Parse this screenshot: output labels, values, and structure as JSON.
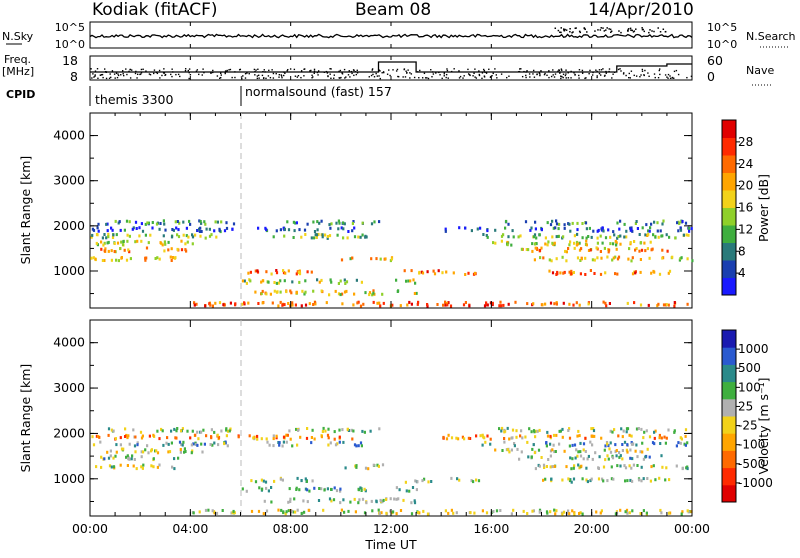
{
  "header": {
    "station": "Kodiak (fitACF)",
    "beam": "Beam 08",
    "date": "14/Apr/2010"
  },
  "strip_labels": {
    "nsky": "N.Sky",
    "nsky_ticks": [
      "10^5",
      "10^0"
    ],
    "nsearch": "N.Search",
    "nsearch_ticks": [
      "10^5",
      "10^0"
    ],
    "freq_line1": "Freq.",
    "freq_line2": "[MHz]",
    "freq_ticks": [
      "18",
      "8"
    ],
    "nave": "Nave",
    "nave_ticks": [
      "60",
      "0"
    ],
    "cpid": "CPID",
    "cpid_segments": [
      "themis 3300",
      "normalsound (fast) 157"
    ]
  },
  "chart_data": [
    {
      "type": "heatmap",
      "name": "power-panel",
      "ylabel": "Slant Range [km]",
      "xlabel": "",
      "yticks": [
        "1000",
        "2000",
        "3000",
        "4000"
      ],
      "ylim": [
        180,
        4500
      ],
      "xlim": [
        0,
        24
      ],
      "colorbar_label": "Power [dB]",
      "colorbar_ticks": [
        "4",
        "8",
        "12",
        "16",
        "20",
        "24",
        "28"
      ],
      "colorbar_colors": [
        "#1a1aff",
        "#1a3fb0",
        "#2a7a7a",
        "#3fae3f",
        "#8fd02a",
        "#f2d21a",
        "#ffa500",
        "#ff6a00",
        "#ff2a00",
        "#e00000"
      ],
      "bands": [
        {
          "range_km": 2100,
          "hours": [
            [
              0.2,
              5.8
            ],
            [
              7.8,
              11.5
            ],
            [
              16.2,
              23.8
            ]
          ],
          "level": 0.75
        },
        {
          "range_km": 1950,
          "hours": [
            [
              0.0,
              6.0
            ],
            [
              6.3,
              10.5
            ],
            [
              14.0,
              24.0
            ]
          ],
          "level": 0.9
        },
        {
          "range_km": 1800,
          "hours": [
            [
              0.0,
              5.5
            ],
            [
              7.0,
              11.0
            ],
            [
              15.5,
              24.0
            ]
          ],
          "level": 0.6
        },
        {
          "range_km": 1650,
          "hours": [
            [
              0.2,
              4.5
            ],
            [
              16.0,
              22.5
            ]
          ],
          "level": 0.5
        },
        {
          "range_km": 1500,
          "hours": [
            [
              0.4,
              3.8
            ],
            [
              17.0,
              23.0
            ]
          ],
          "level": 0.35
        },
        {
          "range_km": 1300,
          "hours": [
            [
              0.0,
              3.5
            ],
            [
              10.0,
              12.0
            ],
            [
              17.5,
              24.0
            ]
          ],
          "level": 0.4
        },
        {
          "range_km": 1000,
          "hours": [
            [
              6.2,
              9.0
            ],
            [
              12.5,
              15.5
            ],
            [
              18.0,
              23.5
            ]
          ],
          "level": 0.25
        },
        {
          "range_km": 800,
          "hours": [
            [
              6.0,
              11.0
            ],
            [
              12.0,
              13.0
            ]
          ],
          "level": 0.55
        },
        {
          "range_km": 550,
          "hours": [
            [
              6.5,
              13.0
            ]
          ],
          "level": 0.45
        },
        {
          "range_km": 300,
          "hours": [
            [
              4.0,
              24.0
            ]
          ],
          "level": 0.2
        }
      ]
    },
    {
      "type": "heatmap",
      "name": "velocity-panel",
      "ylabel": "Slant Range [km]",
      "xlabel": "Time UT",
      "yticks": [
        "1000",
        "2000",
        "3000",
        "4000"
      ],
      "ylim": [
        180,
        4500
      ],
      "xlim": [
        0,
        24
      ],
      "xticks": [
        "00:00",
        "04:00",
        "08:00",
        "12:00",
        "16:00",
        "20:00",
        "00:00"
      ],
      "colorbar_label": "Velocity [m s⁻¹]",
      "colorbar_ticks": [
        "1000",
        "500",
        "100",
        "25",
        "-25",
        "-100",
        "-500",
        "-1000"
      ],
      "colorbar_colors": [
        "#1a1ab0",
        "#2a5ad0",
        "#2a8a8a",
        "#3faf3f",
        "#b0b0b0",
        "#f2d21a",
        "#ffa500",
        "#ff6a00",
        "#ff2a00",
        "#e00000"
      ],
      "bands": [
        {
          "range_km": 2100,
          "hours": [
            [
              0.2,
              5.8
            ],
            [
              7.8,
              11.5
            ],
            [
              16.2,
              23.8
            ]
          ],
          "level": 0.6
        },
        {
          "range_km": 1950,
          "hours": [
            [
              0.0,
              6.0
            ],
            [
              6.3,
              10.5
            ],
            [
              14.0,
              24.0
            ]
          ],
          "level": 0.3
        },
        {
          "range_km": 1800,
          "hours": [
            [
              0.0,
              5.5
            ],
            [
              7.0,
              11.0
            ],
            [
              15.5,
              24.0
            ]
          ],
          "level": 0.7
        },
        {
          "range_km": 1650,
          "hours": [
            [
              0.2,
              4.5
            ],
            [
              16.0,
              22.5
            ]
          ],
          "level": 0.5
        },
        {
          "range_km": 1500,
          "hours": [
            [
              0.4,
              3.8
            ],
            [
              17.0,
              23.0
            ]
          ],
          "level": 0.65
        },
        {
          "range_km": 1300,
          "hours": [
            [
              0.0,
              3.5
            ],
            [
              10.0,
              12.0
            ],
            [
              17.5,
              24.0
            ]
          ],
          "level": 0.55
        },
        {
          "range_km": 1000,
          "hours": [
            [
              6.2,
              9.0
            ],
            [
              12.5,
              15.5
            ],
            [
              18.0,
              23.5
            ]
          ],
          "level": 0.6
        },
        {
          "range_km": 800,
          "hours": [
            [
              6.0,
              11.0
            ],
            [
              12.0,
              13.0
            ]
          ],
          "level": 0.7
        },
        {
          "range_km": 550,
          "hours": [
            [
              6.5,
              13.0
            ]
          ],
          "level": 0.6
        },
        {
          "range_km": 300,
          "hours": [
            [
              4.0,
              24.0
            ]
          ],
          "level": 0.5
        }
      ]
    }
  ]
}
